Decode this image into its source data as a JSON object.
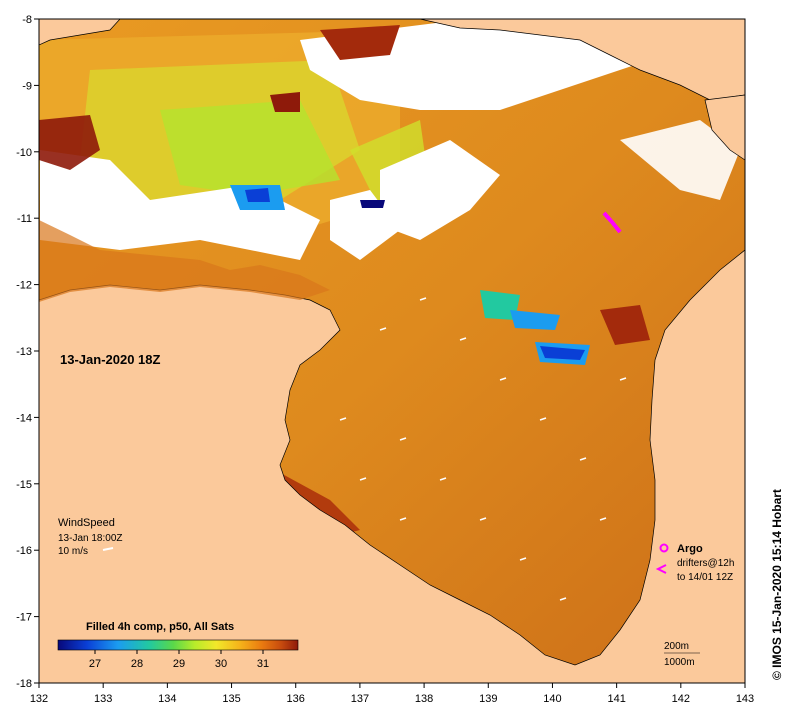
{
  "map": {
    "date_label": "13-Jan-2020 18Z",
    "credit": "© IMOS 15-Jan-2020 15:14 Hobart",
    "lon_ticks": [
      "132",
      "133",
      "134",
      "135",
      "136",
      "137",
      "138",
      "139",
      "140",
      "141",
      "142",
      "143"
    ],
    "lat_ticks": [
      "-8",
      "-9",
      "-10",
      "-11",
      "-12",
      "-13",
      "-14",
      "-15",
      "-16",
      "-17",
      "-18"
    ],
    "wind": {
      "title": "WindSpeed",
      "time": "13-Jan 18:00Z",
      "scale": "10 m/s"
    },
    "argo": {
      "title": "Argo",
      "drifters": "drifters@12h",
      "to": "to 14/01 12Z"
    },
    "depth": {
      "a": "200m",
      "b": "1000m"
    },
    "colorbar": {
      "title": "Filled 4h comp, p50, All Sats",
      "labels": [
        "27",
        "28",
        "29",
        "30",
        "31"
      ],
      "colors": [
        "#08087a",
        "#0a3fd6",
        "#1b9cf0",
        "#22c9a0",
        "#5ad84a",
        "#b8ec2a",
        "#f2e72a",
        "#f5b21a",
        "#ea7a10",
        "#c74b0e",
        "#8e1a0a"
      ]
    },
    "colors": {
      "land": "#fbc99b",
      "sea": "#d97a1c",
      "cloud": "#ffffff",
      "argo": "#ff00ff"
    }
  }
}
